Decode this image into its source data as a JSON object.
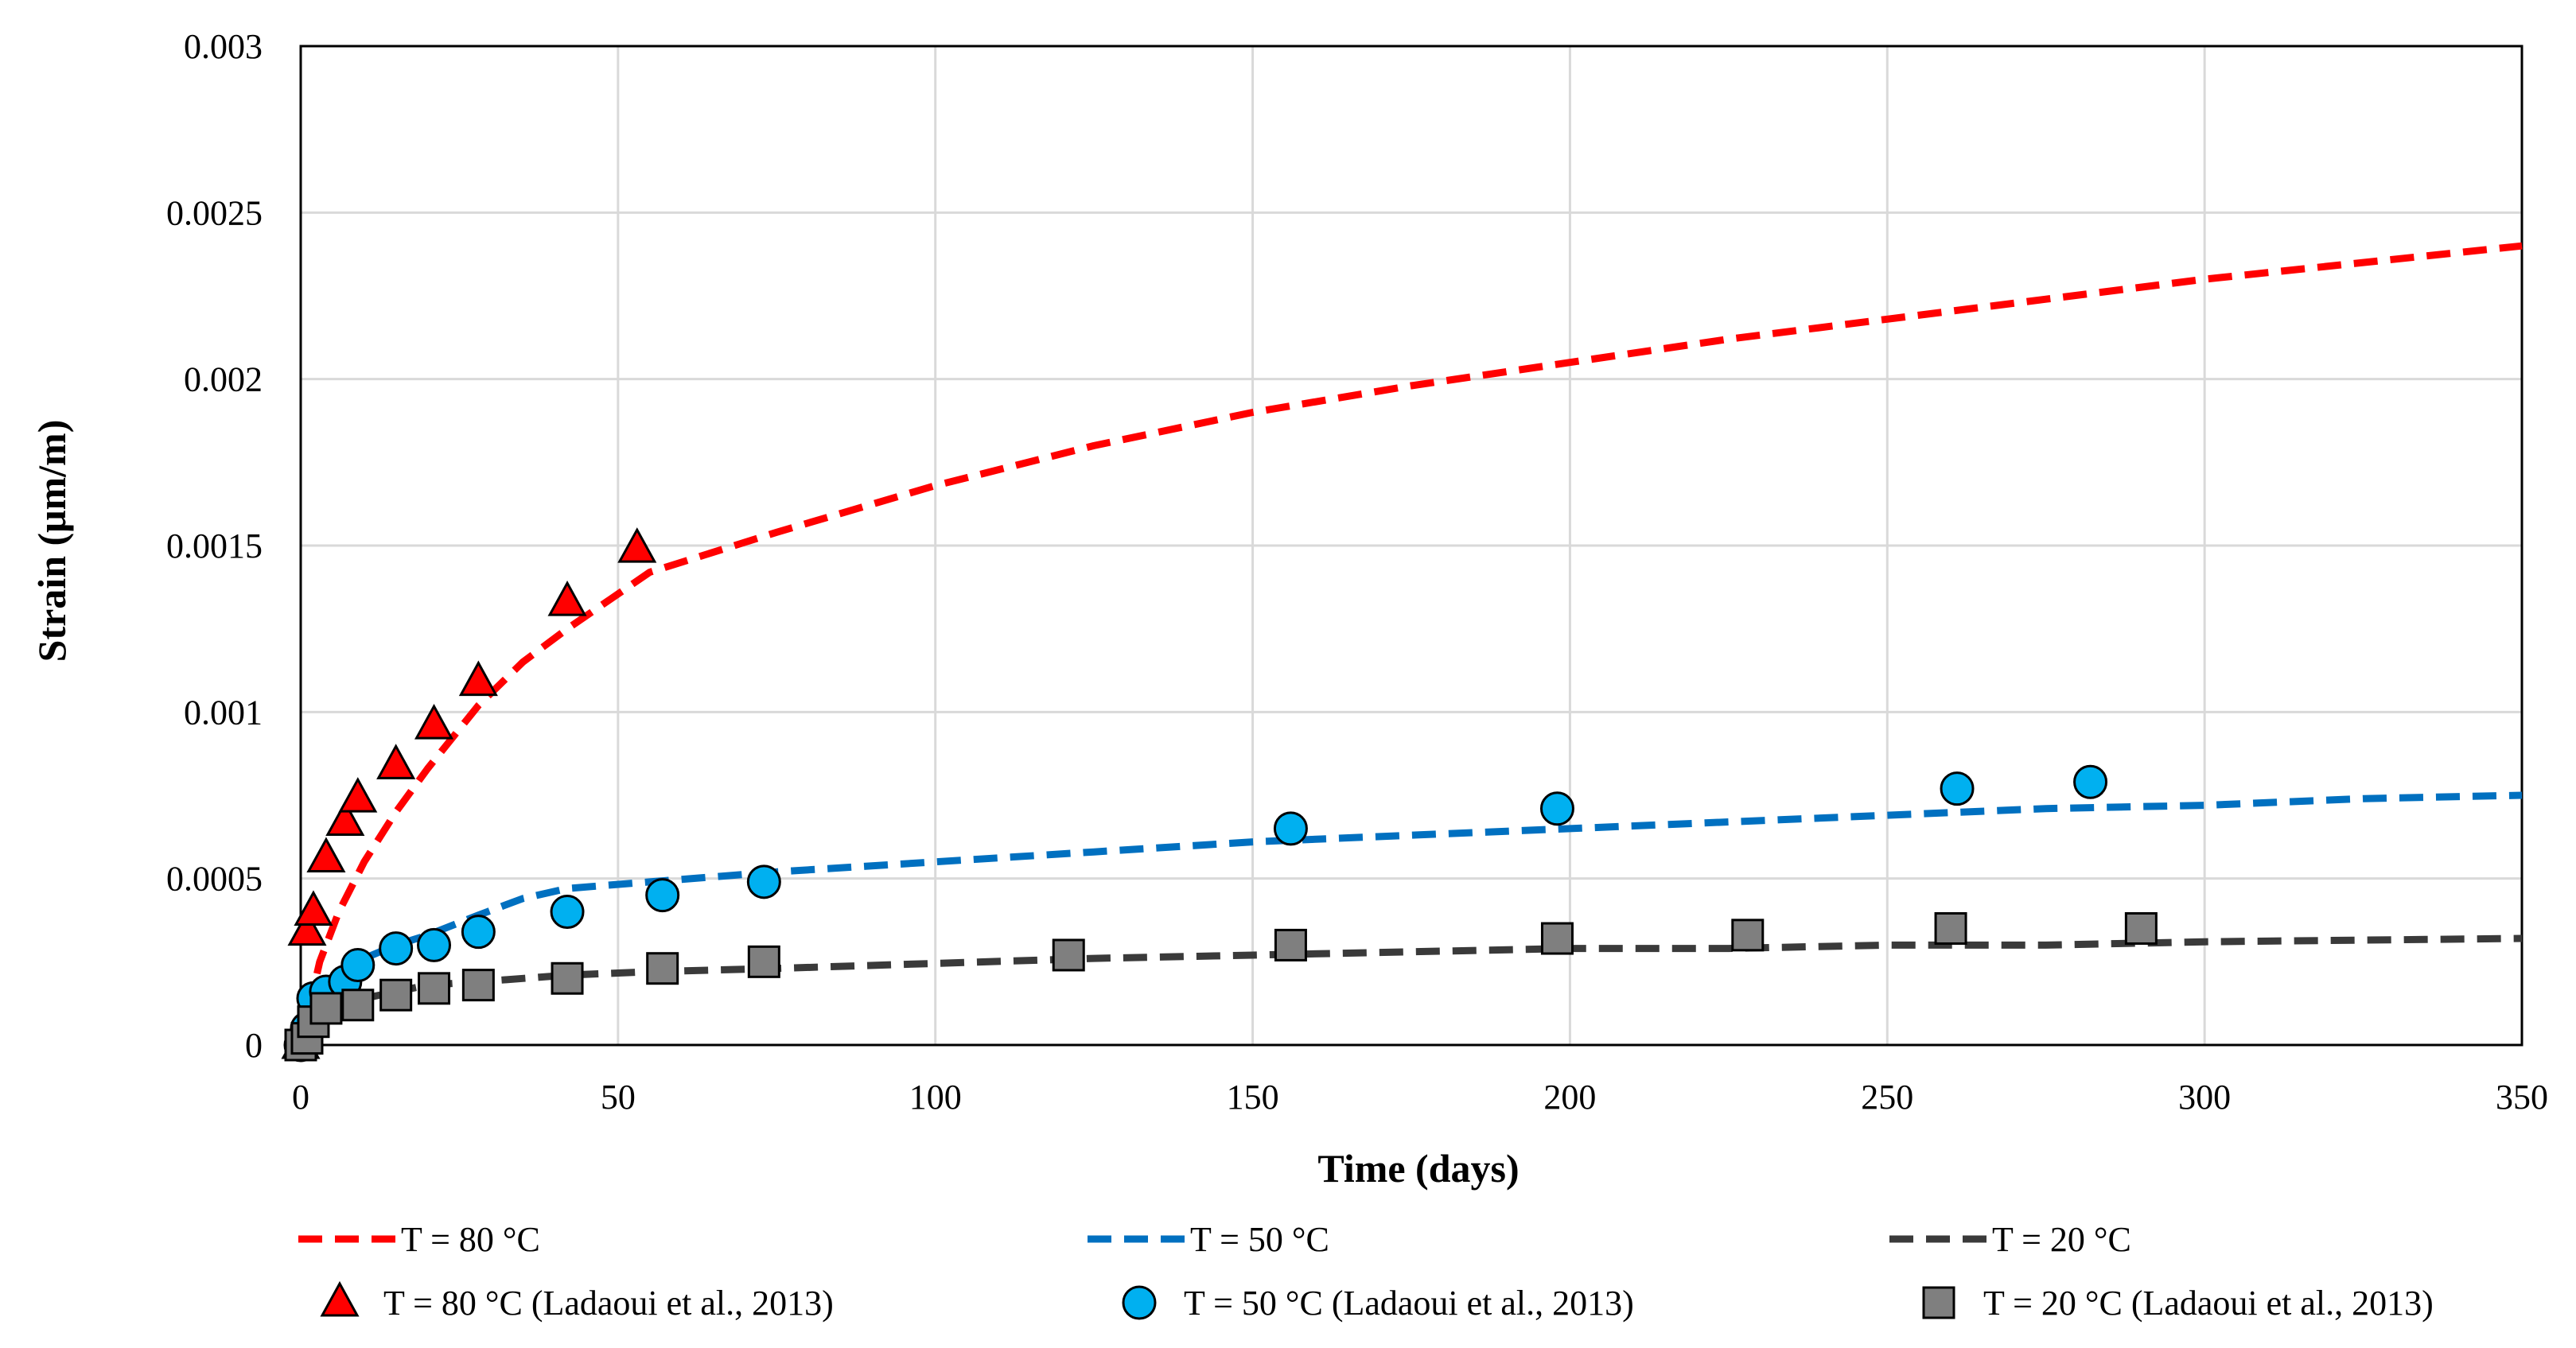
{
  "chart_data": {
    "type": "scatter",
    "title": "",
    "xlabel": "Time (days)",
    "ylabel": "Strain (μm/m)",
    "xlim": [
      0,
      350
    ],
    "ylim": [
      0,
      0.003
    ],
    "x_ticks": [
      0,
      50,
      100,
      150,
      200,
      250,
      300,
      350
    ],
    "x_tick_labels": [
      "0",
      "50",
      "100",
      "150",
      "200",
      "250",
      "300",
      "350"
    ],
    "y_ticks": [
      0,
      0.0005,
      0.001,
      0.0015,
      0.002,
      0.0025,
      0.003
    ],
    "y_tick_labels": [
      "0",
      "0.0005",
      "0.001",
      "0.0015",
      "0.002",
      "0.0025",
      "0.003"
    ],
    "grid": true,
    "legend_position": "bottom",
    "series": [
      {
        "name": "T = 80 °C",
        "kind": "dashed-line",
        "color": "#ff0000",
        "x": [
          0,
          3,
          6,
          10,
          15,
          20,
          28,
          35,
          42,
          55,
          75,
          100,
          125,
          150,
          175,
          200,
          225,
          250,
          275,
          300,
          325,
          350
        ],
        "y": [
          0,
          0.00025,
          0.0004,
          0.00055,
          0.0007,
          0.00083,
          0.00102,
          0.00115,
          0.00125,
          0.00142,
          0.00154,
          0.00168,
          0.0018,
          0.0019,
          0.00198,
          0.00205,
          0.00212,
          0.00218,
          0.00224,
          0.0023,
          0.00235,
          0.0024
        ]
      },
      {
        "name": "T = 50 °C",
        "kind": "dashed-line",
        "color": "#0070c0",
        "x": [
          0,
          3,
          6,
          10,
          15,
          20,
          28,
          35,
          42,
          55,
          75,
          100,
          125,
          150,
          175,
          200,
          225,
          250,
          275,
          300,
          325,
          350
        ],
        "y": [
          0,
          0.00012,
          0.0002,
          0.00026,
          0.0003,
          0.00033,
          0.00039,
          0.00044,
          0.00047,
          0.00049,
          0.00052,
          0.00055,
          0.00058,
          0.00061,
          0.00063,
          0.00065,
          0.00067,
          0.00069,
          0.00071,
          0.00072,
          0.00074,
          0.00075
        ]
      },
      {
        "name": "T = 20 °C",
        "kind": "dashed-line",
        "color": "#3a3a3a",
        "x": [
          0,
          3,
          6,
          10,
          15,
          20,
          28,
          35,
          42,
          55,
          75,
          100,
          125,
          150,
          175,
          200,
          225,
          250,
          275,
          300,
          325,
          350
        ],
        "y": [
          0,
          7e-05,
          0.00011,
          0.00014,
          0.00016,
          0.00018,
          0.00019,
          0.0002,
          0.00021,
          0.00022,
          0.00023,
          0.000245,
          0.00026,
          0.00027,
          0.00028,
          0.00029,
          0.00029,
          0.0003,
          0.0003,
          0.00031,
          0.000315,
          0.00032
        ]
      },
      {
        "name": "T = 80 °C (Ladaoui et al., 2013)",
        "kind": "markers",
        "marker": "triangle",
        "color": "#ff0000",
        "x": [
          0,
          1,
          2,
          4,
          7,
          9,
          15,
          21,
          28,
          42,
          53
        ],
        "y": [
          0,
          0.00034,
          0.0004,
          0.00056,
          0.00067,
          0.00074,
          0.00084,
          0.00096,
          0.00109,
          0.00133,
          0.00149
        ]
      },
      {
        "name": "T = 50 °C (Ladaoui et al., 2013)",
        "kind": "markers",
        "marker": "circle",
        "color": "#00b0f0",
        "x": [
          0,
          1,
          2,
          4,
          7,
          9,
          15,
          21,
          28,
          42,
          57,
          73,
          156,
          198,
          261,
          282
        ],
        "y": [
          0,
          5e-05,
          0.00014,
          0.00016,
          0.00019,
          0.00024,
          0.00029,
          0.0003,
          0.00034,
          0.0004,
          0.00045,
          0.00049,
          0.00065,
          0.00071,
          0.00077,
          0.00079
        ]
      },
      {
        "name": "T = 20 °C (Ladaoui et al., 2013)",
        "kind": "markers",
        "marker": "square",
        "color": "#7f7f7f",
        "x": [
          0,
          1,
          2,
          4,
          9,
          15,
          21,
          28,
          42,
          57,
          73,
          121,
          156,
          198,
          228,
          260,
          290
        ],
        "y": [
          0,
          2e-05,
          7e-05,
          0.00011,
          0.00012,
          0.00015,
          0.00017,
          0.00018,
          0.0002,
          0.00023,
          0.00025,
          0.00027,
          0.0003,
          0.00032,
          0.00033,
          0.00035,
          0.00035
        ]
      }
    ]
  }
}
